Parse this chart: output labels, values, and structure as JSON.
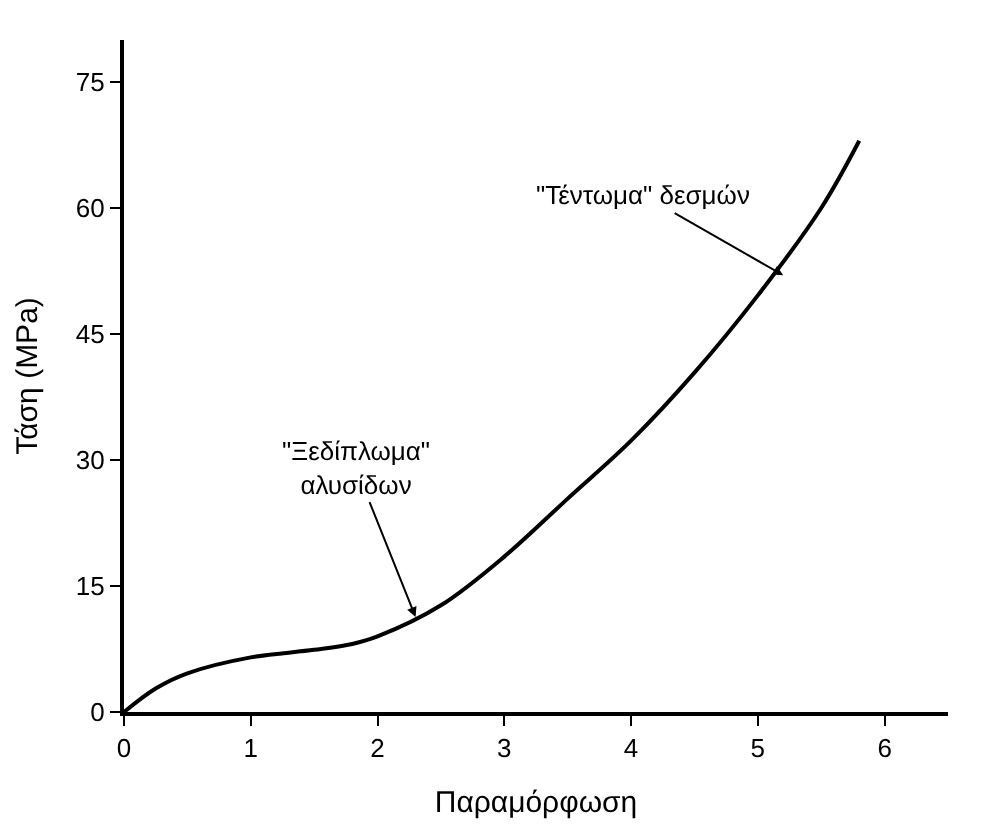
{
  "chart_data": {
    "type": "line",
    "xlabel": "Παραμόρφωση",
    "ylabel": "Τάση (MPa)",
    "x": [
      0,
      0.25,
      0.5,
      1,
      1.5,
      1.8,
      2,
      2.5,
      3,
      3.5,
      4,
      4.5,
      5,
      5.5,
      5.8
    ],
    "series": [
      {
        "color": "#000000",
        "values": [
          0,
          2.8,
          4.6,
          6.5,
          7.4,
          8.1,
          9,
          12.7,
          18.5,
          25.4,
          32.3,
          40.4,
          49.6,
          60,
          68
        ]
      }
    ],
    "xlim": [
      0,
      6.5
    ],
    "xticks": [
      0,
      1,
      2,
      3,
      4,
      5,
      6
    ],
    "ylim": [
      0,
      80
    ],
    "yticks": [
      0,
      15,
      30,
      45,
      60,
      75
    ],
    "marker": "none",
    "line_style": "solid",
    "annotations": [
      {
        "text": "\"Ξεδίπλωμα\"\nαλυσίδων",
        "x": 2.3,
        "y": 11.3
      },
      {
        "text": "\"Τέντωμα\" δεσμών",
        "x": 5.2,
        "y": 52
      }
    ]
  }
}
